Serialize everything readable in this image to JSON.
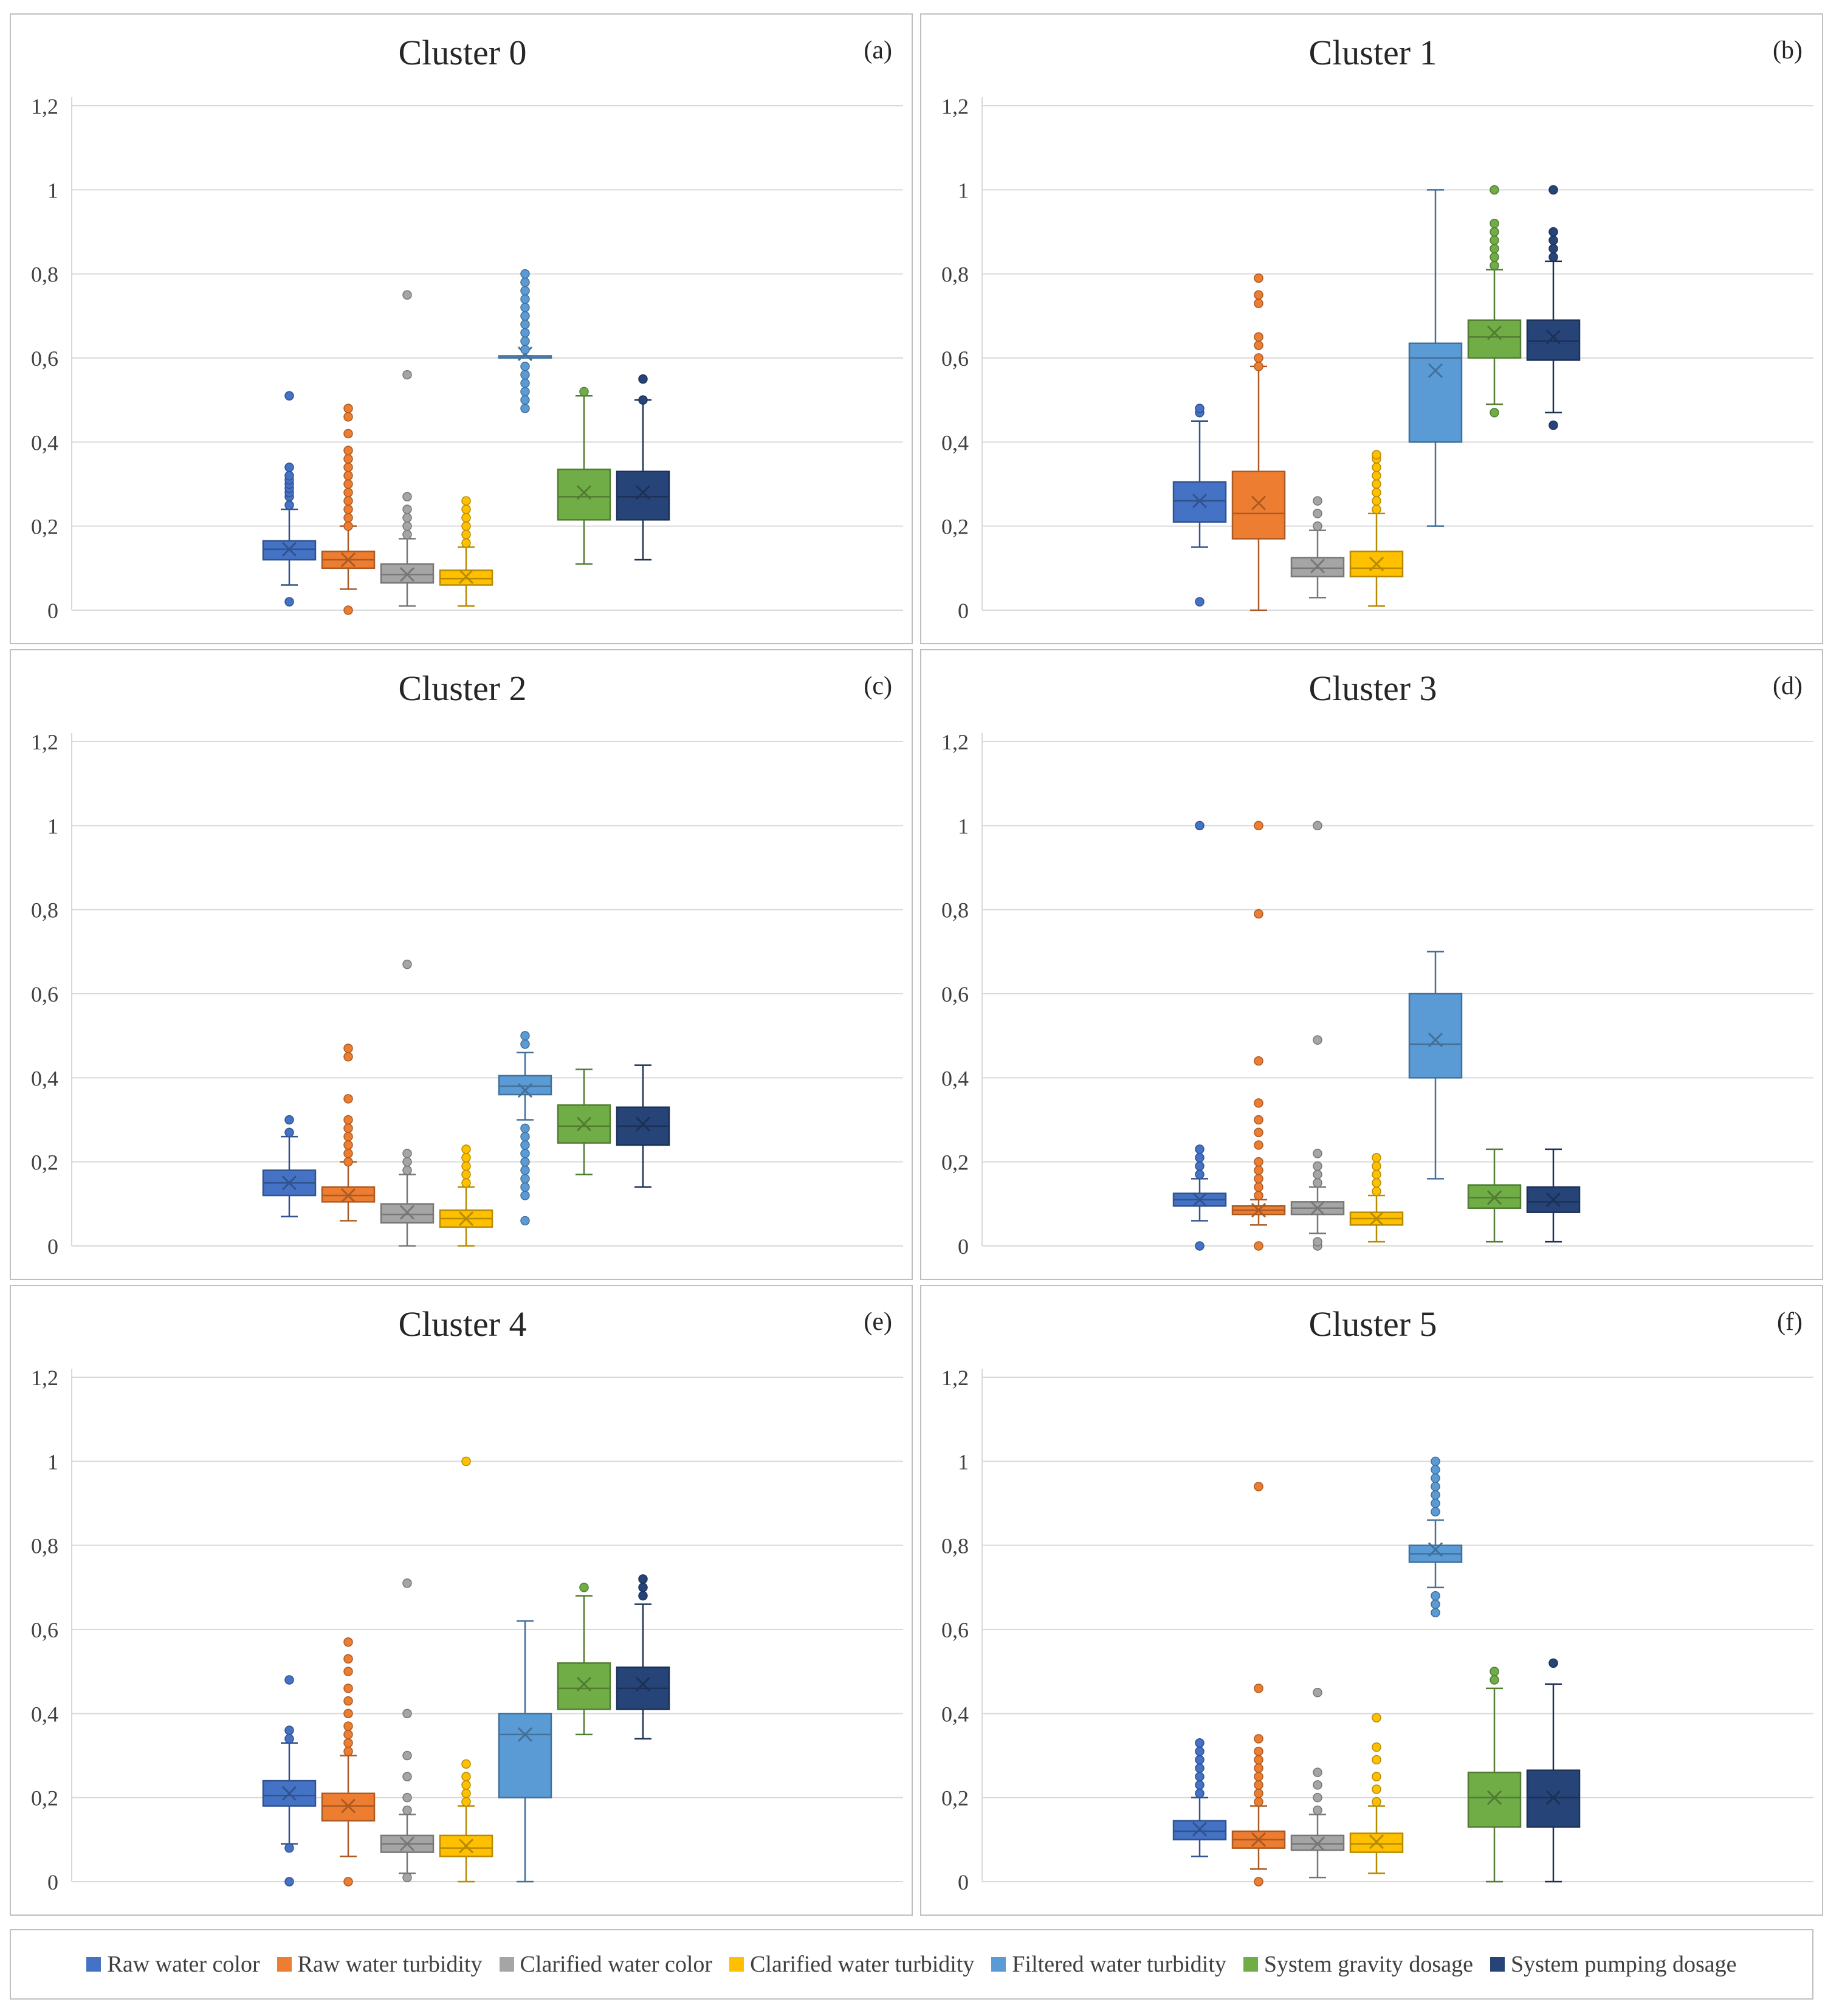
{
  "chart_data": {
    "type": "boxplot",
    "value_axis": {
      "ticks": [
        "0",
        "0,2",
        "0,4",
        "0,6",
        "0,8",
        "1",
        "1,2"
      ],
      "ylim": [
        0,
        1.2
      ],
      "grid": true
    },
    "series": [
      {
        "name": "Raw water color",
        "color": "#4472C4"
      },
      {
        "name": "Raw water turbidity",
        "color": "#ED7D31"
      },
      {
        "name": "Clarified water color",
        "color": "#A5A5A5"
      },
      {
        "name": "Clarified water turbidity",
        "color": "#FFC000"
      },
      {
        "name": "Filtered water turbidity",
        "color": "#5B9BD5"
      },
      {
        "name": "System gravity dosage",
        "color": "#70AD47"
      },
      {
        "name": "System pumping dosage",
        "color": "#264478"
      }
    ],
    "panels": [
      {
        "title": "Cluster 0",
        "letter": "(a)",
        "boxes": [
          {
            "min": 0.06,
            "q1": 0.12,
            "median": 0.145,
            "q3": 0.165,
            "max": 0.24,
            "mean": 0.145,
            "outliers": [
              0.02,
              0.25,
              0.27,
              0.28,
              0.29,
              0.3,
              0.31,
              0.32,
              0.34,
              0.51
            ]
          },
          {
            "min": 0.05,
            "q1": 0.1,
            "median": 0.12,
            "q3": 0.14,
            "max": 0.2,
            "mean": 0.12,
            "outliers": [
              0.0,
              0.2,
              0.22,
              0.24,
              0.26,
              0.28,
              0.3,
              0.32,
              0.34,
              0.36,
              0.38,
              0.42,
              0.46,
              0.48
            ]
          },
          {
            "min": 0.01,
            "q1": 0.065,
            "median": 0.085,
            "q3": 0.11,
            "max": 0.17,
            "mean": 0.085,
            "outliers": [
              0.18,
              0.2,
              0.22,
              0.24,
              0.27,
              0.56,
              0.75
            ]
          },
          {
            "min": 0.01,
            "q1": 0.06,
            "median": 0.075,
            "q3": 0.095,
            "max": 0.15,
            "mean": 0.08,
            "outliers": [
              0.16,
              0.18,
              0.2,
              0.22,
              0.24,
              0.26
            ]
          },
          {
            "min": 0.6,
            "q1": 0.6,
            "median": 0.6,
            "q3": 0.605,
            "max": 0.605,
            "mean": 0.61,
            "outliers": [
              0.48,
              0.5,
              0.52,
              0.54,
              0.56,
              0.58,
              0.62,
              0.64,
              0.66,
              0.68,
              0.7,
              0.72,
              0.74,
              0.76,
              0.78,
              0.8
            ]
          },
          {
            "min": 0.11,
            "q1": 0.215,
            "median": 0.27,
            "q3": 0.335,
            "max": 0.51,
            "mean": 0.28,
            "outliers": [
              0.52
            ]
          },
          {
            "min": 0.12,
            "q1": 0.215,
            "median": 0.27,
            "q3": 0.33,
            "max": 0.5,
            "mean": 0.28,
            "outliers": [
              0.5,
              0.55
            ]
          }
        ]
      },
      {
        "title": "Cluster 1",
        "letter": "(b)",
        "boxes": [
          {
            "min": 0.15,
            "q1": 0.21,
            "median": 0.26,
            "q3": 0.305,
            "max": 0.45,
            "mean": 0.26,
            "outliers": [
              0.02,
              0.47,
              0.48
            ]
          },
          {
            "min": 0.0,
            "q1": 0.17,
            "median": 0.23,
            "q3": 0.33,
            "max": 0.58,
            "mean": 0.255,
            "outliers": [
              0.58,
              0.6,
              0.63,
              0.65,
              0.73,
              0.75,
              0.79
            ]
          },
          {
            "min": 0.03,
            "q1": 0.08,
            "median": 0.1,
            "q3": 0.125,
            "max": 0.19,
            "mean": 0.105,
            "outliers": [
              0.2,
              0.23,
              0.26
            ]
          },
          {
            "min": 0.01,
            "q1": 0.08,
            "median": 0.1,
            "q3": 0.14,
            "max": 0.23,
            "mean": 0.11,
            "outliers": [
              0.24,
              0.26,
              0.28,
              0.3,
              0.32,
              0.34,
              0.36,
              0.37
            ]
          },
          {
            "min": 0.2,
            "q1": 0.4,
            "median": 0.6,
            "q3": 0.635,
            "max": 1.0,
            "mean": 0.57,
            "outliers": []
          },
          {
            "min": 0.49,
            "q1": 0.6,
            "median": 0.65,
            "q3": 0.69,
            "max": 0.81,
            "mean": 0.66,
            "outliers": [
              0.47,
              0.82,
              0.84,
              0.86,
              0.88,
              0.9,
              0.92,
              1.0
            ]
          },
          {
            "min": 0.47,
            "q1": 0.595,
            "median": 0.64,
            "q3": 0.69,
            "max": 0.83,
            "mean": 0.65,
            "outliers": [
              0.44,
              0.84,
              0.86,
              0.88,
              0.9,
              1.0
            ]
          }
        ]
      },
      {
        "title": "Cluster 2",
        "letter": "(c)",
        "boxes": [
          {
            "min": 0.07,
            "q1": 0.12,
            "median": 0.15,
            "q3": 0.18,
            "max": 0.26,
            "mean": 0.15,
            "outliers": [
              0.27,
              0.3
            ]
          },
          {
            "min": 0.06,
            "q1": 0.105,
            "median": 0.12,
            "q3": 0.14,
            "max": 0.2,
            "mean": 0.12,
            "outliers": [
              0.2,
              0.22,
              0.24,
              0.26,
              0.28,
              0.3,
              0.35,
              0.45,
              0.47
            ]
          },
          {
            "min": 0.0,
            "q1": 0.055,
            "median": 0.075,
            "q3": 0.1,
            "max": 0.17,
            "mean": 0.08,
            "outliers": [
              0.18,
              0.2,
              0.22,
              0.67
            ]
          },
          {
            "min": 0.0,
            "q1": 0.045,
            "median": 0.065,
            "q3": 0.085,
            "max": 0.14,
            "mean": 0.065,
            "outliers": [
              0.15,
              0.17,
              0.19,
              0.21,
              0.23
            ]
          },
          {
            "min": 0.3,
            "q1": 0.36,
            "median": 0.38,
            "q3": 0.405,
            "max": 0.46,
            "mean": 0.37,
            "outliers": [
              0.06,
              0.12,
              0.14,
              0.16,
              0.18,
              0.2,
              0.22,
              0.24,
              0.26,
              0.28,
              0.48,
              0.5
            ]
          },
          {
            "min": 0.17,
            "q1": 0.245,
            "median": 0.285,
            "q3": 0.335,
            "max": 0.42,
            "mean": 0.29,
            "outliers": []
          },
          {
            "min": 0.14,
            "q1": 0.24,
            "median": 0.285,
            "q3": 0.33,
            "max": 0.43,
            "mean": 0.29,
            "outliers": []
          }
        ]
      },
      {
        "title": "Cluster 3",
        "letter": "(d)",
        "boxes": [
          {
            "min": 0.06,
            "q1": 0.095,
            "median": 0.11,
            "q3": 0.125,
            "max": 0.16,
            "mean": 0.11,
            "outliers": [
              0.0,
              0.17,
              0.19,
              0.21,
              0.23,
              1.0
            ]
          },
          {
            "min": 0.05,
            "q1": 0.075,
            "median": 0.085,
            "q3": 0.095,
            "max": 0.11,
            "mean": 0.085,
            "outliers": [
              0.0,
              0.12,
              0.14,
              0.16,
              0.18,
              0.2,
              0.24,
              0.27,
              0.3,
              0.34,
              0.44,
              0.79,
              1.0
            ]
          },
          {
            "min": 0.03,
            "q1": 0.075,
            "median": 0.09,
            "q3": 0.105,
            "max": 0.14,
            "mean": 0.09,
            "outliers": [
              0.0,
              0.01,
              0.15,
              0.17,
              0.19,
              0.22,
              0.49,
              1.0
            ]
          },
          {
            "min": 0.01,
            "q1": 0.05,
            "median": 0.065,
            "q3": 0.08,
            "max": 0.12,
            "mean": 0.065,
            "outliers": [
              0.13,
              0.15,
              0.17,
              0.19,
              0.21
            ]
          },
          {
            "min": 0.16,
            "q1": 0.4,
            "median": 0.48,
            "q3": 0.6,
            "max": 0.7,
            "mean": 0.49,
            "outliers": []
          },
          {
            "min": 0.01,
            "q1": 0.09,
            "median": 0.115,
            "q3": 0.145,
            "max": 0.23,
            "mean": 0.115,
            "outliers": []
          },
          {
            "min": 0.01,
            "q1": 0.08,
            "median": 0.105,
            "q3": 0.14,
            "max": 0.23,
            "mean": 0.11,
            "outliers": []
          }
        ]
      },
      {
        "title": "Cluster 4",
        "letter": "(e)",
        "boxes": [
          {
            "min": 0.09,
            "q1": 0.18,
            "median": 0.205,
            "q3": 0.24,
            "max": 0.33,
            "mean": 0.21,
            "outliers": [
              0.0,
              0.08,
              0.34,
              0.36,
              0.48
            ]
          },
          {
            "min": 0.06,
            "q1": 0.145,
            "median": 0.18,
            "q3": 0.21,
            "max": 0.3,
            "mean": 0.18,
            "outliers": [
              0.0,
              0.31,
              0.33,
              0.35,
              0.37,
              0.4,
              0.43,
              0.46,
              0.5,
              0.53,
              0.57
            ]
          },
          {
            "min": 0.02,
            "q1": 0.07,
            "median": 0.09,
            "q3": 0.11,
            "max": 0.16,
            "mean": 0.09,
            "outliers": [
              0.01,
              0.17,
              0.2,
              0.25,
              0.3,
              0.4,
              0.71
            ]
          },
          {
            "min": 0.0,
            "q1": 0.06,
            "median": 0.08,
            "q3": 0.11,
            "max": 0.18,
            "mean": 0.085,
            "outliers": [
              0.19,
              0.21,
              0.23,
              0.25,
              0.28,
              1.0
            ]
          },
          {
            "min": 0.0,
            "q1": 0.2,
            "median": 0.35,
            "q3": 0.4,
            "max": 0.62,
            "mean": 0.35,
            "outliers": []
          },
          {
            "min": 0.35,
            "q1": 0.41,
            "median": 0.46,
            "q3": 0.52,
            "max": 0.68,
            "mean": 0.47,
            "outliers": [
              0.7
            ]
          },
          {
            "min": 0.34,
            "q1": 0.41,
            "median": 0.46,
            "q3": 0.51,
            "max": 0.66,
            "mean": 0.47,
            "outliers": [
              0.68,
              0.7,
              0.72
            ]
          }
        ]
      },
      {
        "title": "Cluster 5",
        "letter": "(f)",
        "boxes": [
          {
            "min": 0.06,
            "q1": 0.1,
            "median": 0.12,
            "q3": 0.145,
            "max": 0.2,
            "mean": 0.125,
            "outliers": [
              0.21,
              0.23,
              0.25,
              0.27,
              0.29,
              0.31,
              0.33
            ]
          },
          {
            "min": 0.03,
            "q1": 0.08,
            "median": 0.1,
            "q3": 0.12,
            "max": 0.18,
            "mean": 0.1,
            "outliers": [
              0.0,
              0.19,
              0.21,
              0.23,
              0.25,
              0.27,
              0.29,
              0.31,
              0.34,
              0.46,
              0.94
            ]
          },
          {
            "min": 0.01,
            "q1": 0.075,
            "median": 0.09,
            "q3": 0.11,
            "max": 0.16,
            "mean": 0.09,
            "outliers": [
              0.17,
              0.2,
              0.23,
              0.26,
              0.45
            ]
          },
          {
            "min": 0.02,
            "q1": 0.07,
            "median": 0.09,
            "q3": 0.115,
            "max": 0.18,
            "mean": 0.095,
            "outliers": [
              0.19,
              0.22,
              0.25,
              0.29,
              0.32,
              0.39
            ]
          },
          {
            "min": 0.7,
            "q1": 0.76,
            "median": 0.78,
            "q3": 0.8,
            "max": 0.86,
            "mean": 0.79,
            "outliers": [
              0.64,
              0.66,
              0.68,
              0.88,
              0.9,
              0.92,
              0.94,
              0.96,
              0.98,
              1.0
            ]
          },
          {
            "min": 0.0,
            "q1": 0.13,
            "median": 0.2,
            "q3": 0.26,
            "max": 0.46,
            "mean": 0.2,
            "outliers": [
              0.48,
              0.5
            ]
          },
          {
            "min": 0.0,
            "q1": 0.13,
            "median": 0.2,
            "q3": 0.265,
            "max": 0.47,
            "mean": 0.2,
            "outliers": [
              0.52
            ]
          }
        ]
      }
    ]
  }
}
